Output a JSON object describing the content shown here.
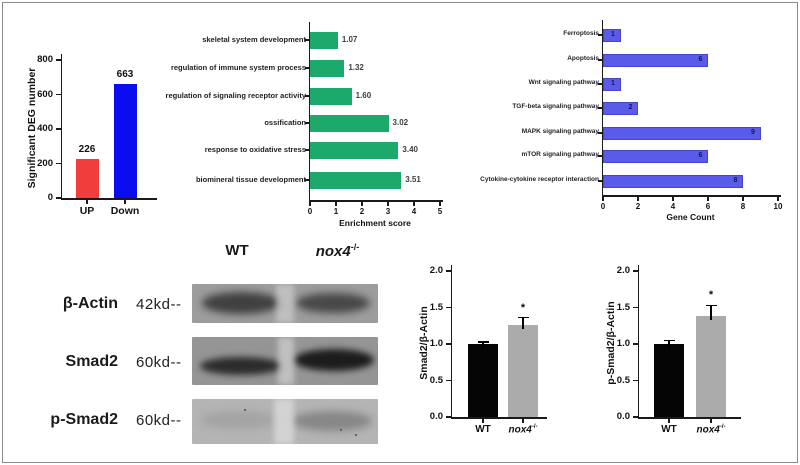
{
  "chart_data": [
    {
      "id": "deg",
      "type": "bar",
      "title": "",
      "ylabel": "Significant DEG number",
      "categories": [
        "UP",
        "Down"
      ],
      "values": [
        226,
        663
      ],
      "value_labels": [
        "226",
        "663"
      ],
      "colors": [
        "#f23d3d",
        "#0c0cf0"
      ],
      "ylim": [
        0,
        800
      ],
      "yticks": [
        "0",
        "200",
        "400",
        "600",
        "800"
      ],
      "grid": false
    },
    {
      "id": "go",
      "type": "bar-horizontal",
      "title": "",
      "categories": [
        "skeletal system development",
        "regulation of immune system process",
        "regulation of signaling receptor activity",
        "ossification",
        "response to oxidative stress",
        "biomineral tissue development"
      ],
      "values": [
        1.07,
        1.32,
        1.6,
        3.02,
        3.4,
        3.51
      ],
      "value_labels": [
        "1.07",
        "1.32",
        "1.60",
        "3.02",
        "3.40",
        "3.51"
      ],
      "xlabel": "Enrichment score",
      "xlim": [
        0,
        5
      ],
      "xticks": [
        "0",
        "1",
        "2",
        "3",
        "4",
        "5"
      ],
      "color": "#1ea96c",
      "grid": false
    },
    {
      "id": "kegg",
      "type": "bar-horizontal",
      "title": "",
      "categories": [
        "Ferroptosis",
        "Apoptosis",
        "Wnt signaling pathway",
        "TGF-beta signaling pathway",
        "MAPK signaling pathway",
        "mTOR signaling pathway",
        "Cytokine-cytokine receptor interaction"
      ],
      "values": [
        1,
        6,
        1,
        2,
        9,
        6,
        8
      ],
      "value_labels": [
        "1",
        "6",
        "1",
        "2",
        "9",
        "6",
        "8"
      ],
      "xlabel": "Gene Count",
      "xlim": [
        0,
        10
      ],
      "xticks": [
        "0",
        "2",
        "4",
        "6",
        "8",
        "10"
      ],
      "color": "#5b5bea",
      "grid": false
    },
    {
      "id": "smad2_ratio",
      "type": "bar",
      "title": "",
      "ylabel": "Smad2/β-Actin",
      "categories": [
        "WT",
        "nox4"
      ],
      "cat_italic": [
        false,
        true
      ],
      "cat_sup": [
        "",
        "-/-"
      ],
      "values": [
        1.0,
        1.26
      ],
      "errors": [
        0.03,
        0.1
      ],
      "sig": [
        null,
        "*"
      ],
      "colors": [
        "#050505",
        "#ababab"
      ],
      "ylim": [
        0,
        2
      ],
      "yticks": [
        "0.0",
        "0.5",
        "1.0",
        "1.5",
        "2.0"
      ],
      "grid": false
    },
    {
      "id": "psmad2_ratio",
      "type": "bar",
      "title": "",
      "ylabel": "p-Smad2/β-Actin",
      "categories": [
        "WT",
        "nox4"
      ],
      "cat_italic": [
        false,
        true
      ],
      "cat_sup": [
        "",
        "-/-"
      ],
      "values": [
        1.0,
        1.38
      ],
      "errors": [
        0.05,
        0.15
      ],
      "sig": [
        null,
        "*"
      ],
      "colors": [
        "#050505",
        "#ababab"
      ],
      "ylim": [
        0,
        2
      ],
      "yticks": [
        "0.0",
        "0.5",
        "1.0",
        "1.5",
        "2.0"
      ],
      "grid": false
    }
  ],
  "western_blot": {
    "lanes": [
      {
        "label": "WT",
        "sup": ""
      },
      {
        "label": "nox4",
        "sup": "-/-"
      }
    ],
    "rows": [
      {
        "protein": "β-Actin",
        "size": "42kd--"
      },
      {
        "protein": "Smad2",
        "size": "60kd--"
      },
      {
        "protein": "p-Smad2",
        "size": "60kd--"
      }
    ]
  },
  "colors": {
    "up_bar": "#f23d3d",
    "down_bar": "#0c0cf0",
    "go_bar": "#1ea96c",
    "kegg_bar": "#5b5bea",
    "wt_bar": "#050505",
    "ko_bar": "#ababab",
    "axis": "#1a1a1a"
  }
}
